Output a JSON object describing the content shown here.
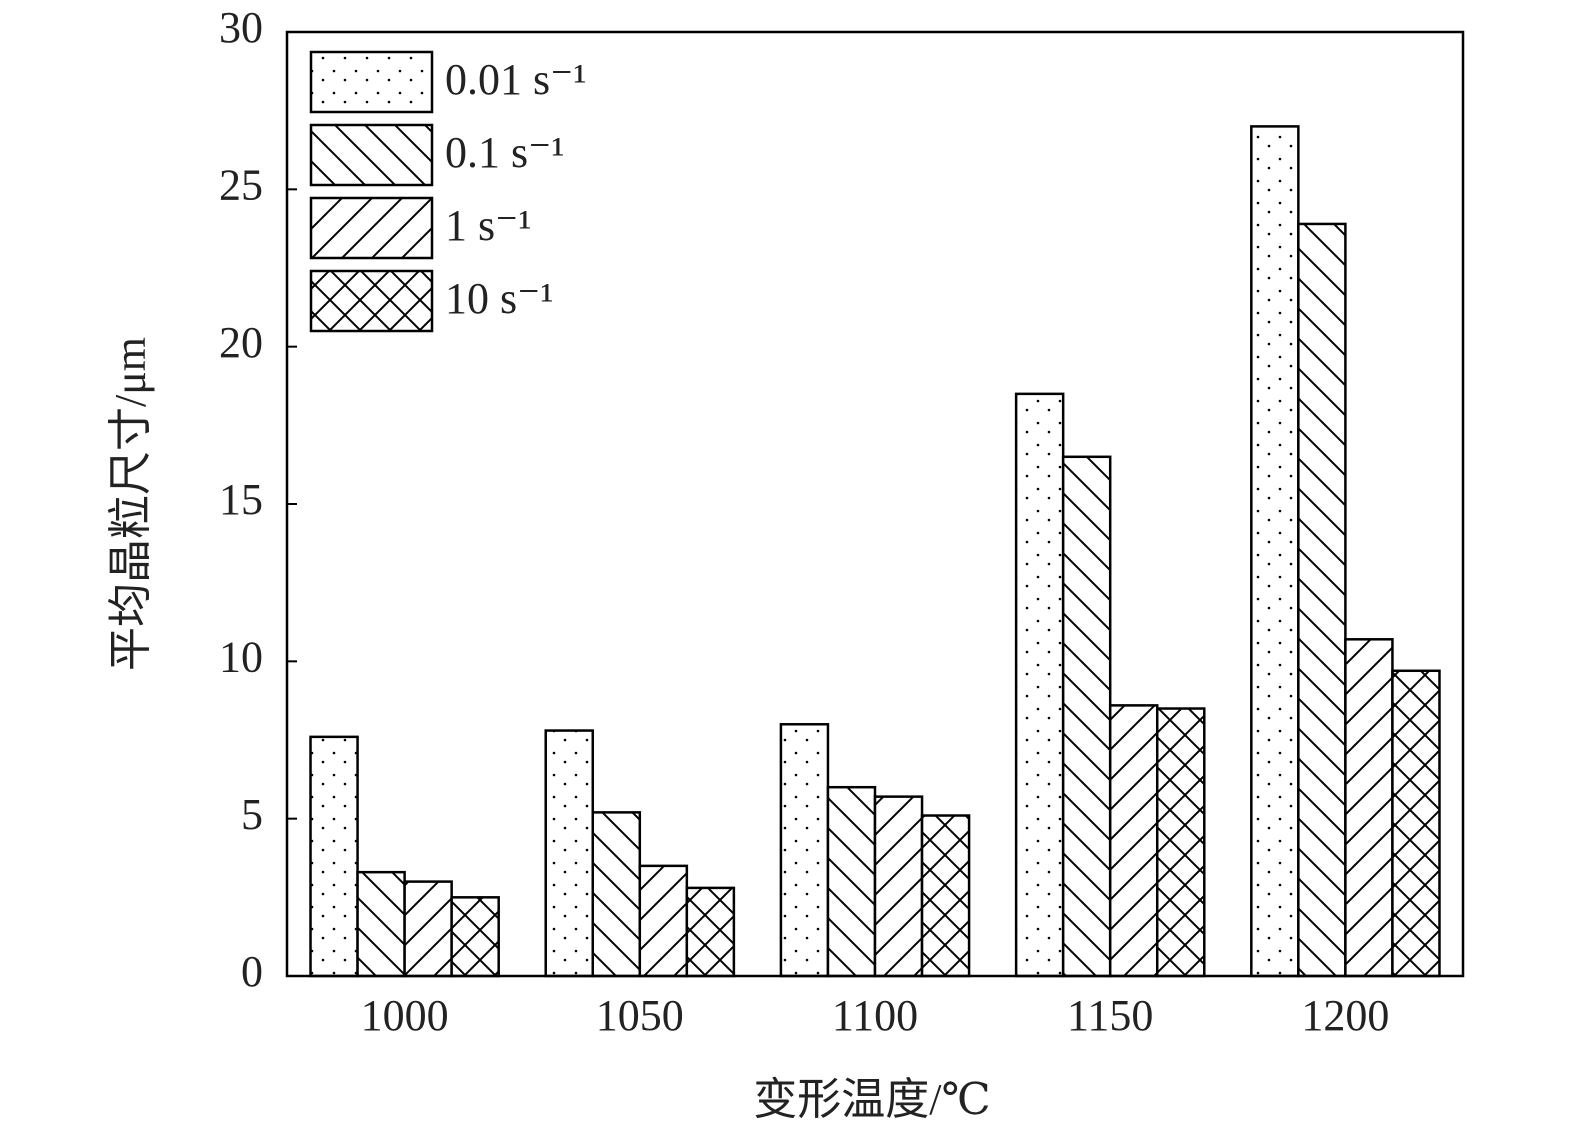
{
  "chart_data": {
    "type": "bar",
    "x_label": "变形温度/℃",
    "y_label": "平均晶粒尺寸/μm",
    "categories": [
      "1000",
      "1050",
      "1100",
      "1150",
      "1200"
    ],
    "series": [
      {
        "name": "0.01 s⁻¹",
        "color": "#000000",
        "hatch": "dots",
        "values": [
          7.6,
          7.8,
          8.0,
          18.5,
          27.0
        ]
      },
      {
        "name": "0.1 s⁻¹",
        "color": "#000000",
        "hatch": "backslash",
        "values": [
          3.3,
          5.2,
          6.0,
          16.5,
          23.9
        ]
      },
      {
        "name": "1 s⁻¹",
        "color": "#000000",
        "hatch": "slash",
        "values": [
          3.0,
          3.5,
          5.7,
          8.6,
          10.7
        ]
      },
      {
        "name": "10 s⁻¹",
        "color": "#000000",
        "hatch": "cross",
        "values": [
          2.5,
          2.8,
          5.1,
          8.5,
          9.7
        ]
      }
    ],
    "ylim": [
      0,
      30
    ],
    "yticks": [
      0,
      5,
      10,
      15,
      20,
      25,
      30
    ],
    "grid": false,
    "legend": "upper left"
  }
}
